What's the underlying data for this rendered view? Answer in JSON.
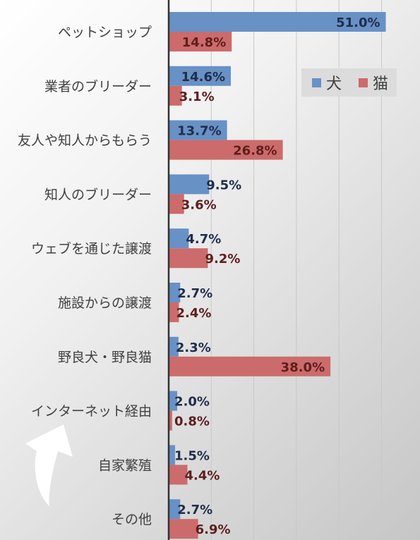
{
  "chart_data": {
    "type": "bar",
    "orientation": "horizontal",
    "categories": [
      "ペットショップ",
      "業者のブリーダー",
      "友人や知人からもらう",
      "知人のブリーダー",
      "ウェブを通じた譲渡",
      "施設からの譲渡",
      "野良犬・野良猫",
      "インターネット経由",
      "自家繁殖",
      "その他"
    ],
    "series": [
      {
        "name": "犬",
        "color": "#6891c6",
        "label_color": "#1f2d4a",
        "values": [
          51.0,
          14.6,
          13.7,
          9.5,
          4.7,
          2.7,
          2.3,
          2.0,
          1.5,
          2.7
        ],
        "labels": [
          "51.0%",
          "14.6%",
          "13.7%",
          "9.5%",
          "4.7%",
          "2.7%",
          "2.3%",
          "2.0%",
          "1.5%",
          "2.7%"
        ]
      },
      {
        "name": "猫",
        "color": "#cc6b6b",
        "label_color": "#5e1d1d",
        "values": [
          14.8,
          3.1,
          26.8,
          3.6,
          9.2,
          2.4,
          38.0,
          0.8,
          4.4,
          6.9
        ],
        "labels": [
          "14.8%",
          "3.1%",
          "26.8%",
          "3.6%",
          "9.2%",
          "2.4%",
          "38.0%",
          "0.8%",
          "4.4%",
          "6.9%"
        ]
      }
    ],
    "xlim": [
      0,
      60
    ],
    "grid": true,
    "legend_position": "top-right",
    "title": "",
    "xlabel": "",
    "ylabel": ""
  },
  "decorations": {
    "arrow_color": "#ffffff",
    "arrow_icon": "curved-arrow-up-icon"
  }
}
